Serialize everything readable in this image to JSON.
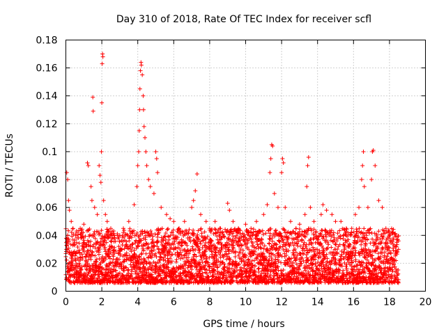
{
  "chart_data": {
    "type": "scatter",
    "title": "Day 310 of 2018, Rate Of TEC Index for receiver scfl",
    "xlabel": "GPS time / hours",
    "ylabel": "ROTI / TECUs",
    "xlim": [
      0,
      20
    ],
    "ylim": [
      0,
      0.18
    ],
    "x_ticks": [
      0,
      2,
      4,
      6,
      8,
      10,
      12,
      14,
      16,
      18,
      20
    ],
    "x_tick_labels": [
      "0",
      "2",
      "4",
      "6",
      "8",
      "10",
      "12",
      "14",
      "16",
      "18",
      "20"
    ],
    "y_ticks": [
      0,
      0.02,
      0.04,
      0.06,
      0.08,
      0.1,
      0.12,
      0.14,
      0.16,
      0.18
    ],
    "y_tick_labels": [
      "0",
      "0.02",
      "0.04",
      "0.06",
      "0.08",
      "0.1",
      "0.12",
      "0.14",
      "0.16",
      "0.18"
    ],
    "grid": true,
    "marker": "+",
    "marker_color": "#ff0000",
    "series": [
      {
        "name": "ROTI",
        "points": [
          [
            0.05,
            0.085
          ],
          [
            0.1,
            0.08
          ],
          [
            0.15,
            0.065
          ],
          [
            0.2,
            0.058
          ],
          [
            0.3,
            0.05
          ],
          [
            0.4,
            0.045
          ],
          [
            0.6,
            0.042
          ],
          [
            0.8,
            0.045
          ],
          [
            1.0,
            0.048
          ],
          [
            1.2,
            0.092
          ],
          [
            1.25,
            0.09
          ],
          [
            1.4,
            0.075
          ],
          [
            1.45,
            0.065
          ],
          [
            1.5,
            0.139
          ],
          [
            1.52,
            0.129
          ],
          [
            1.6,
            0.06
          ],
          [
            1.75,
            0.055
          ],
          [
            1.85,
            0.09
          ],
          [
            1.9,
            0.083
          ],
          [
            1.95,
            0.078
          ],
          [
            1.98,
            0.1
          ],
          [
            2.0,
            0.135
          ],
          [
            2.02,
            0.163
          ],
          [
            2.04,
            0.17
          ],
          [
            2.06,
            0.168
          ],
          [
            2.1,
            0.065
          ],
          [
            2.2,
            0.055
          ],
          [
            2.3,
            0.05
          ],
          [
            2.5,
            0.045
          ],
          [
            2.7,
            0.04
          ],
          [
            3.0,
            0.04
          ],
          [
            3.2,
            0.045
          ],
          [
            3.5,
            0.05
          ],
          [
            3.8,
            0.062
          ],
          [
            3.95,
            0.075
          ],
          [
            4.0,
            0.09
          ],
          [
            4.05,
            0.1
          ],
          [
            4.08,
            0.115
          ],
          [
            4.1,
            0.13
          ],
          [
            4.12,
            0.145
          ],
          [
            4.15,
            0.158
          ],
          [
            4.18,
            0.164
          ],
          [
            4.2,
            0.162
          ],
          [
            4.25,
            0.155
          ],
          [
            4.3,
            0.14
          ],
          [
            4.32,
            0.13
          ],
          [
            4.35,
            0.118
          ],
          [
            4.4,
            0.11
          ],
          [
            4.45,
            0.1
          ],
          [
            4.5,
            0.09
          ],
          [
            4.6,
            0.08
          ],
          [
            4.7,
            0.075
          ],
          [
            4.9,
            0.07
          ],
          [
            5.0,
            0.1
          ],
          [
            5.05,
            0.095
          ],
          [
            5.1,
            0.085
          ],
          [
            5.3,
            0.06
          ],
          [
            5.6,
            0.055
          ],
          [
            5.8,
            0.052
          ],
          [
            6.0,
            0.05
          ],
          [
            6.3,
            0.045
          ],
          [
            6.6,
            0.05
          ],
          [
            7.0,
            0.06
          ],
          [
            7.1,
            0.065
          ],
          [
            7.2,
            0.072
          ],
          [
            7.3,
            0.084
          ],
          [
            7.5,
            0.055
          ],
          [
            7.8,
            0.05
          ],
          [
            8.0,
            0.045
          ],
          [
            8.3,
            0.05
          ],
          [
            8.6,
            0.045
          ],
          [
            9.0,
            0.063
          ],
          [
            9.1,
            0.058
          ],
          [
            9.3,
            0.05
          ],
          [
            9.6,
            0.045
          ],
          [
            10.0,
            0.048
          ],
          [
            10.3,
            0.045
          ],
          [
            10.6,
            0.05
          ],
          [
            11.0,
            0.055
          ],
          [
            11.2,
            0.062
          ],
          [
            11.35,
            0.085
          ],
          [
            11.4,
            0.095
          ],
          [
            11.45,
            0.105
          ],
          [
            11.5,
            0.104
          ],
          [
            11.6,
            0.07
          ],
          [
            11.8,
            0.06
          ],
          [
            12.0,
            0.085
          ],
          [
            12.05,
            0.095
          ],
          [
            12.1,
            0.092
          ],
          [
            12.2,
            0.06
          ],
          [
            12.5,
            0.05
          ],
          [
            12.8,
            0.045
          ],
          [
            13.0,
            0.048
          ],
          [
            13.3,
            0.055
          ],
          [
            13.4,
            0.075
          ],
          [
            13.45,
            0.09
          ],
          [
            13.5,
            0.096
          ],
          [
            13.6,
            0.06
          ],
          [
            13.8,
            0.05
          ],
          [
            14.2,
            0.055
          ],
          [
            14.3,
            0.062
          ],
          [
            14.5,
            0.058
          ],
          [
            14.8,
            0.055
          ],
          [
            15.0,
            0.05
          ],
          [
            15.3,
            0.05
          ],
          [
            15.6,
            0.045
          ],
          [
            15.9,
            0.045
          ],
          [
            16.1,
            0.055
          ],
          [
            16.3,
            0.06
          ],
          [
            16.45,
            0.08
          ],
          [
            16.5,
            0.09
          ],
          [
            16.55,
            0.1
          ],
          [
            16.6,
            0.075
          ],
          [
            16.8,
            0.06
          ],
          [
            17.0,
            0.08
          ],
          [
            17.05,
            0.1
          ],
          [
            17.1,
            0.101
          ],
          [
            17.2,
            0.09
          ],
          [
            17.4,
            0.065
          ],
          [
            17.6,
            0.06
          ],
          [
            17.8,
            0.045
          ],
          [
            18.0,
            0.04
          ],
          [
            18.2,
            0.038
          ],
          [
            18.4,
            0.035
          ],
          [
            18.5,
            0.03
          ]
        ],
        "baseline": {
          "x_start": 0.0,
          "x_end": 18.5,
          "x_step": 0.02,
          "typical_min": 0.006,
          "typical_max": 0.045
        }
      }
    ]
  }
}
